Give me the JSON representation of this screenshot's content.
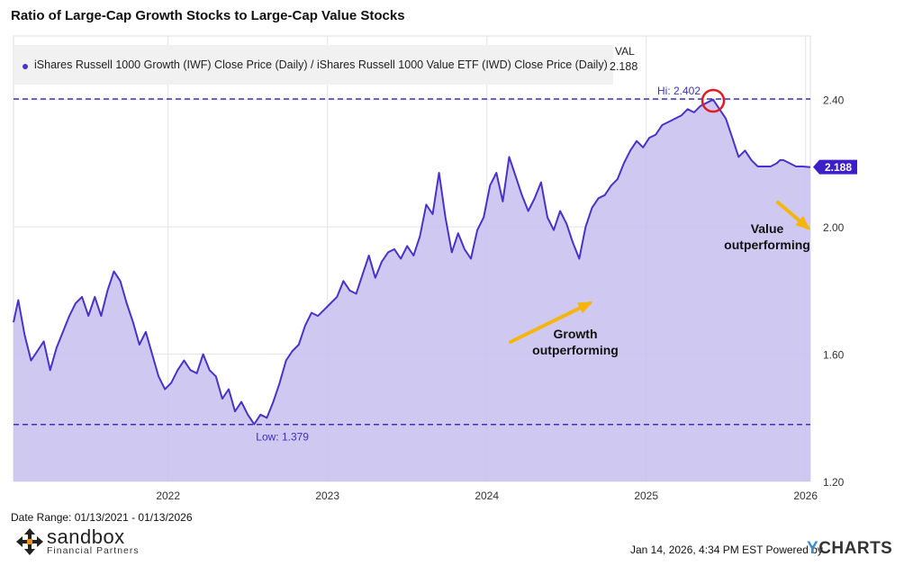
{
  "title": "Ratio of Large-Cap Growth Stocks to Large-Cap Value Stocks",
  "legend": {
    "label": "iShares Russell 1000 Growth (IWF) Close Price (Daily) / iShares Russell 1000 Value ETF (IWD) Close Price (Daily)",
    "val_header": "VAL",
    "val": "2.188"
  },
  "footer": {
    "date_range": "Date Range: 01/13/2021 - 01/13/2026",
    "timestamp": "Jan 14, 2026, 4:34 PM EST Powered by",
    "brand_y": "Y",
    "brand_rest": "CHARTS"
  },
  "logo": {
    "name": "sandbox",
    "sub": "Financial Partners"
  },
  "colors": {
    "line": "#4a32c9",
    "fill": "#c7c0f0",
    "arrow": "#f5b50c",
    "circle": "#e01b24",
    "grid": "#e3e3e3"
  },
  "chart_data": {
    "type": "area",
    "title": "Ratio of Large-Cap Growth Stocks to Large-Cap Value Stocks",
    "ylim": [
      1.2,
      2.6
    ],
    "y_ticks": [
      "1.20",
      "1.60",
      "2.00",
      "2.40"
    ],
    "x_ticks": [
      {
        "label": "2022",
        "t": 2022.0
      },
      {
        "label": "2023",
        "t": 2023.0
      },
      {
        "label": "2024",
        "t": 2024.0
      },
      {
        "label": "2025",
        "t": 2025.0
      },
      {
        "label": "2026",
        "t": 2026.0
      }
    ],
    "xlim": [
      2021.03,
      2026.03
    ],
    "series": [
      {
        "name": "iShares Russell 1000 Growth (IWF) Close Price (Daily) / iShares Russell 1000 Value ETF (IWD) Close Price (Daily)",
        "t": [
          2021.03,
          2021.06,
          2021.1,
          2021.14,
          2021.18,
          2021.22,
          2021.26,
          2021.3,
          2021.34,
          2021.38,
          2021.42,
          2021.46,
          2021.5,
          2021.54,
          2021.58,
          2021.62,
          2021.66,
          2021.7,
          2021.74,
          2021.78,
          2021.82,
          2021.86,
          2021.9,
          2021.94,
          2021.98,
          2022.02,
          2022.06,
          2022.1,
          2022.14,
          2022.18,
          2022.22,
          2022.26,
          2022.3,
          2022.34,
          2022.38,
          2022.42,
          2022.46,
          2022.5,
          2022.54,
          2022.58,
          2022.62,
          2022.66,
          2022.7,
          2022.74,
          2022.78,
          2022.82,
          2022.86,
          2022.9,
          2022.94,
          2022.98,
          2023.02,
          2023.06,
          2023.1,
          2023.14,
          2023.18,
          2023.22,
          2023.26,
          2023.3,
          2023.34,
          2023.38,
          2023.42,
          2023.46,
          2023.5,
          2023.54,
          2023.58,
          2023.62,
          2023.66,
          2023.7,
          2023.74,
          2023.78,
          2023.82,
          2023.86,
          2023.9,
          2023.94,
          2023.98,
          2024.02,
          2024.06,
          2024.1,
          2024.14,
          2024.18,
          2024.22,
          2024.26,
          2024.3,
          2024.34,
          2024.38,
          2024.42,
          2024.46,
          2024.5,
          2024.54,
          2024.58,
          2024.62,
          2024.66,
          2024.7,
          2024.74,
          2024.78,
          2024.82,
          2024.86,
          2024.9,
          2024.94,
          2024.98,
          2025.02,
          2025.06,
          2025.1,
          2025.14,
          2025.18,
          2025.22,
          2025.26,
          2025.3,
          2025.34,
          2025.38,
          2025.42,
          2025.46,
          2025.5,
          2025.54,
          2025.58,
          2025.62,
          2025.66,
          2025.7,
          2025.74,
          2025.78,
          2025.82,
          2025.84,
          2025.86,
          2025.9,
          2025.94,
          2025.98,
          2026.03
        ],
        "values": [
          1.7,
          1.77,
          1.66,
          1.58,
          1.61,
          1.64,
          1.55,
          1.62,
          1.67,
          1.72,
          1.76,
          1.78,
          1.72,
          1.78,
          1.72,
          1.8,
          1.86,
          1.83,
          1.76,
          1.7,
          1.63,
          1.67,
          1.6,
          1.53,
          1.49,
          1.51,
          1.55,
          1.58,
          1.55,
          1.54,
          1.6,
          1.55,
          1.53,
          1.46,
          1.49,
          1.42,
          1.45,
          1.41,
          1.38,
          1.41,
          1.4,
          1.45,
          1.51,
          1.58,
          1.61,
          1.63,
          1.69,
          1.73,
          1.72,
          1.74,
          1.76,
          1.78,
          1.83,
          1.8,
          1.79,
          1.85,
          1.91,
          1.84,
          1.89,
          1.92,
          1.93,
          1.9,
          1.94,
          1.91,
          1.97,
          2.07,
          2.04,
          2.17,
          2.03,
          1.92,
          1.98,
          1.93,
          1.9,
          1.99,
          2.03,
          2.13,
          2.17,
          2.08,
          2.22,
          2.16,
          2.1,
          2.05,
          2.09,
          2.14,
          2.03,
          1.99,
          2.05,
          2.01,
          1.95,
          1.9,
          2.0,
          2.06,
          2.09,
          2.1,
          2.13,
          2.15,
          2.2,
          2.24,
          2.27,
          2.25,
          2.28,
          2.29,
          2.32,
          2.33,
          2.34,
          2.35,
          2.37,
          2.36,
          2.38,
          2.39,
          2.4,
          2.37,
          2.34,
          2.28,
          2.22,
          2.24,
          2.21,
          2.19,
          2.19,
          2.19,
          2.2,
          2.21,
          2.21,
          2.2,
          2.19,
          2.19,
          2.188
        ]
      }
    ],
    "annotations": [
      {
        "text": "Hi: 2.402",
        "y": 2.402
      },
      {
        "text": "Low: 1.379",
        "y": 1.379
      },
      {
        "text": "Growth outperforming"
      },
      {
        "text": "Value outperforming"
      }
    ],
    "last_value_label": "2.188"
  }
}
